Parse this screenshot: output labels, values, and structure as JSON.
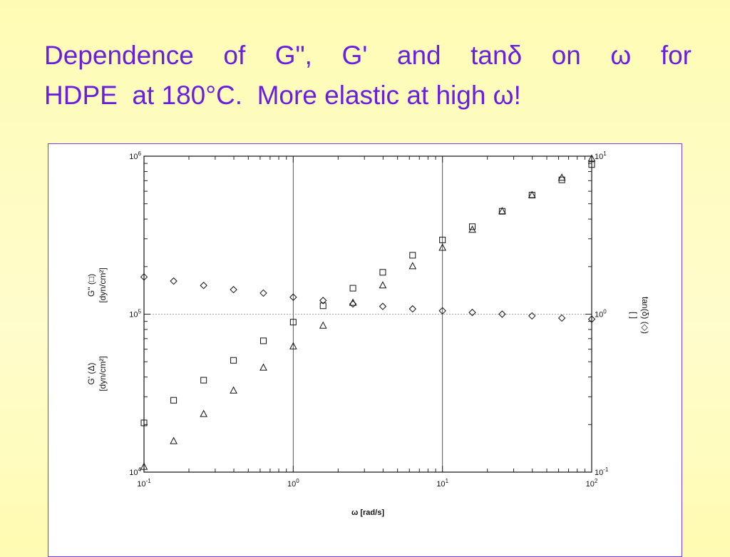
{
  "slide": {
    "title_line1_words": [
      "Dependence",
      "of",
      "G\",",
      "G'",
      "and",
      "tanδ",
      "on",
      "ω",
      "for"
    ],
    "title_line2": "HDPE  at 180°C.  More elastic at high ω!"
  },
  "chart_data": {
    "type": "scatter",
    "title": "Dependence of G\", G' and tanδ on ω for HDPE at 180°C",
    "xlabel": "ω [rad/s]",
    "ylabel_left_top": "G\" (□)",
    "ylabel_left_top_units": "[dyn/cm²]",
    "ylabel_left_bottom": "G' (Δ)",
    "ylabel_left_bottom_units": "[dyn/cm²]",
    "ylabel_right": "tan(δ) (◇)",
    "ylabel_right_units": "[ ]",
    "x_scale": "log",
    "y_left_scale": "log",
    "y_right_scale": "log",
    "xlim": [
      0.1,
      100
    ],
    "ylim_left": [
      10000,
      1000000
    ],
    "ylim_right": [
      0.1,
      10
    ],
    "x_ticks": [
      {
        "base": "10",
        "exp": "-1"
      },
      {
        "base": "10",
        "exp": "0"
      },
      {
        "base": "10",
        "exp": "1"
      },
      {
        "base": "10",
        "exp": "2"
      }
    ],
    "y_left_ticks": [
      {
        "base": "10",
        "exp": "4"
      },
      {
        "base": "10",
        "exp": "5"
      },
      {
        "base": "10",
        "exp": "6"
      }
    ],
    "y_right_ticks": [
      {
        "base": "10",
        "exp": "-1"
      },
      {
        "base": "10",
        "exp": "0"
      },
      {
        "base": "10",
        "exp": "1"
      }
    ],
    "grid": "major decades only",
    "series": [
      {
        "name": "G\"",
        "marker": "square",
        "axis": "left",
        "x": [
          0.1,
          0.158,
          0.251,
          0.398,
          0.631,
          1.0,
          1.585,
          2.512,
          3.981,
          6.31,
          10.0,
          15.85,
          25.12,
          39.81,
          63.1,
          100.0
        ],
        "y": [
          20500,
          28500,
          38200,
          51000,
          67800,
          89000,
          113000,
          146000,
          184000,
          236000,
          295000,
          358000,
          448000,
          567000,
          708000,
          885000
        ]
      },
      {
        "name": "G'",
        "marker": "triangle",
        "axis": "left",
        "x": [
          0.1,
          0.158,
          0.251,
          0.398,
          0.631,
          1.0,
          1.585,
          2.512,
          3.981,
          6.31,
          10.0,
          15.85,
          25.12,
          39.81,
          63.1,
          100.0
        ],
        "y": [
          10800,
          15700,
          23300,
          32800,
          45800,
          62500,
          84500,
          118000,
          152000,
          201000,
          263000,
          342000,
          448000,
          567000,
          730000,
          965000
        ]
      },
      {
        "name": "tan(δ)",
        "marker": "diamond",
        "axis": "right",
        "x": [
          0.1,
          0.158,
          0.251,
          0.398,
          0.631,
          1.0,
          1.585,
          2.512,
          3.981,
          6.31,
          10.0,
          15.85,
          25.12,
          39.81,
          63.1,
          100.0
        ],
        "y": [
          1.72,
          1.62,
          1.52,
          1.43,
          1.36,
          1.28,
          1.22,
          1.16,
          1.12,
          1.08,
          1.05,
          1.025,
          1.0,
          0.975,
          0.945,
          0.93
        ]
      }
    ]
  }
}
